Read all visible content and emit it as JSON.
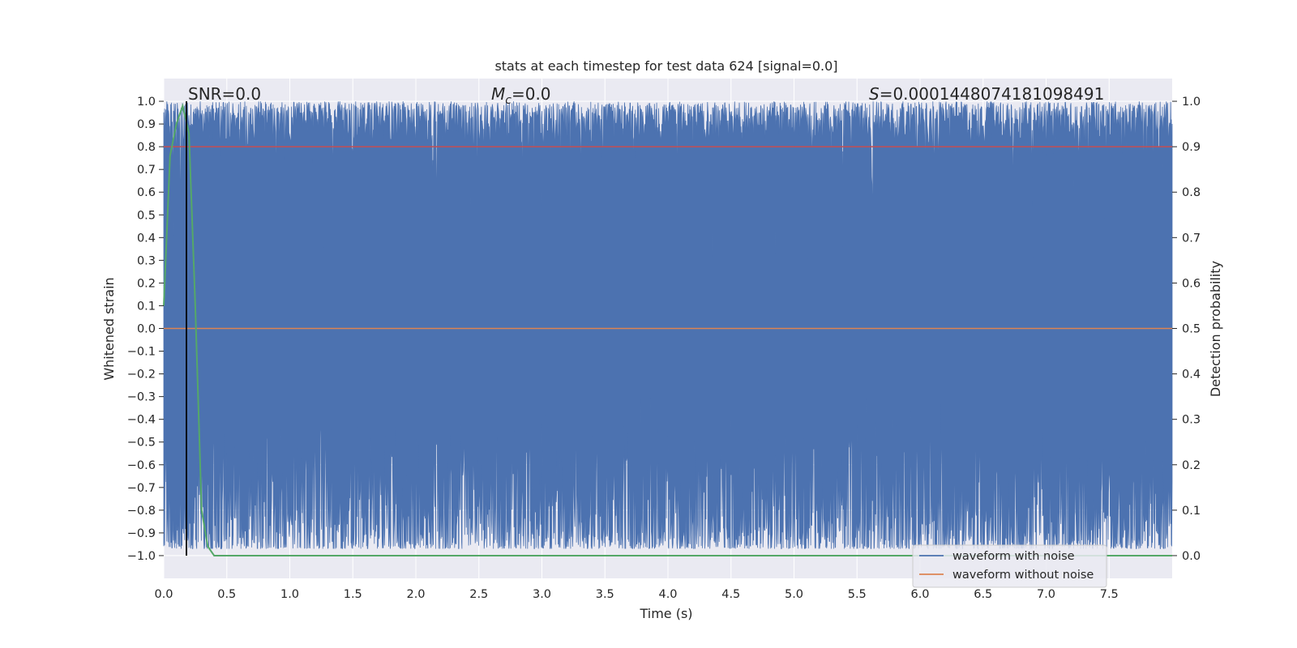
{
  "chart_data": {
    "type": "line",
    "title": "stats at each timestep for test data 624 [signal=0.0]",
    "xlabel": "Time (s)",
    "ylabel": "Whitened strain",
    "y2label": "Detection probability",
    "xlim": [
      0.0,
      8.0
    ],
    "ylim": [
      -1.1,
      1.1
    ],
    "y2lim": [
      -0.05,
      1.05
    ],
    "xticks": [
      "0.0",
      "0.5",
      "1.0",
      "1.5",
      "2.0",
      "2.5",
      "3.0",
      "3.5",
      "4.0",
      "4.5",
      "5.0",
      "5.5",
      "6.0",
      "6.5",
      "7.0",
      "7.5"
    ],
    "yticks": [
      "1.0",
      "0.9",
      "0.8",
      "0.7",
      "0.6",
      "0.5",
      "0.4",
      "0.3",
      "0.2",
      "0.1",
      "0.0",
      "−0.1",
      "−0.2",
      "−0.3",
      "−0.4",
      "−0.5",
      "−0.6",
      "−0.7",
      "−0.8",
      "−0.9",
      "−1.0"
    ],
    "y2ticks": [
      "1.0",
      "0.9",
      "0.8",
      "0.7",
      "0.6",
      "0.5",
      "0.4",
      "0.3",
      "0.2",
      "0.1",
      "0.0"
    ],
    "grid": true,
    "legend_position": "lower-right",
    "annotations": {
      "snr": "SNR=0.0",
      "mc_symbol": "M",
      "mc_sub": "c",
      "mc_value": "=0.0",
      "s_symbol": "S",
      "s_value": "=0.0001448074181098491"
    },
    "series": [
      {
        "name": "waveform with noise",
        "color": "#4c72b0",
        "kind": "noise strain spanning about -1.0 to 1.0"
      },
      {
        "name": "waveform without noise",
        "color": "#dd8452",
        "values_constant": 0.0
      }
    ],
    "detection_probability": {
      "color": "#55a868",
      "x": [
        0.0,
        0.05,
        0.1,
        0.15,
        0.2,
        0.25,
        0.3,
        0.35,
        0.4,
        8.0
      ],
      "y": [
        0.55,
        0.88,
        0.95,
        0.99,
        0.93,
        0.55,
        0.1,
        0.02,
        0.0,
        0.0
      ]
    },
    "threshold": {
      "color": "#c44e52",
      "y2": 0.9
    },
    "marker_line": {
      "color": "#000000",
      "x": 0.18
    },
    "colors": {
      "plot_bg": "#eaeaf2",
      "grid": "#ffffff"
    }
  }
}
